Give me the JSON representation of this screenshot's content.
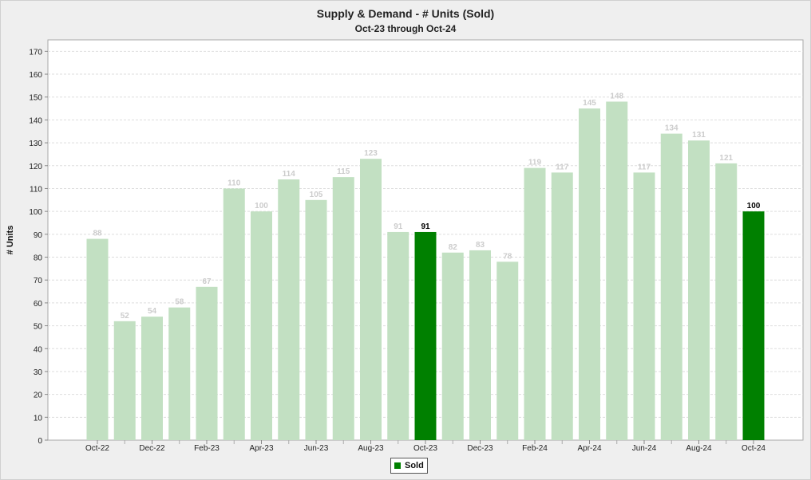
{
  "colors": {
    "past": "#c2e0c2",
    "highlight": "#008000",
    "past_label": "#cccccc",
    "highlight_label": "#000000",
    "grid": "#dddddd"
  },
  "legend": {
    "label": "Sold",
    "color": "#008000"
  },
  "chart_data": {
    "type": "bar",
    "title": "Supply & Demand - # Units (Sold)",
    "subtitle": "Oct-23 through Oct-24",
    "xlabel": "",
    "ylabel": "# Units",
    "ylim": [
      0,
      175
    ],
    "yticks": [
      0,
      10,
      20,
      30,
      40,
      50,
      60,
      70,
      80,
      90,
      100,
      110,
      120,
      130,
      140,
      150,
      160,
      170
    ],
    "grid": true,
    "legend_position": "bottom-center",
    "categories": [
      "Oct-22",
      "Nov-22",
      "Dec-22",
      "Jan-23",
      "Feb-23",
      "Mar-23",
      "Apr-23",
      "May-23",
      "Jun-23",
      "Jul-23",
      "Aug-23",
      "Sep-23",
      "Oct-23",
      "Nov-23",
      "Dec-23",
      "Jan-24",
      "Feb-24",
      "Mar-24",
      "Apr-24",
      "May-24",
      "Jun-24",
      "Jul-24",
      "Aug-24",
      "Sep-24",
      "Oct-24"
    ],
    "tick_labels": [
      "Oct-22",
      "",
      "Dec-22",
      "",
      "Feb-23",
      "",
      "Apr-23",
      "",
      "Jun-23",
      "",
      "Aug-23",
      "",
      "Oct-23",
      "",
      "Dec-23",
      "",
      "Feb-24",
      "",
      "Apr-24",
      "",
      "Jun-24",
      "",
      "Aug-24",
      "",
      "Oct-24"
    ],
    "series": [
      {
        "name": "Sold",
        "values": [
          88,
          52,
          54,
          58,
          67,
          110,
          100,
          114,
          105,
          115,
          123,
          91,
          91,
          82,
          83,
          78,
          119,
          117,
          145,
          148,
          117,
          134,
          131,
          121,
          100
        ]
      }
    ],
    "highlighted": [
      "Oct-23",
      "Oct-24"
    ]
  }
}
